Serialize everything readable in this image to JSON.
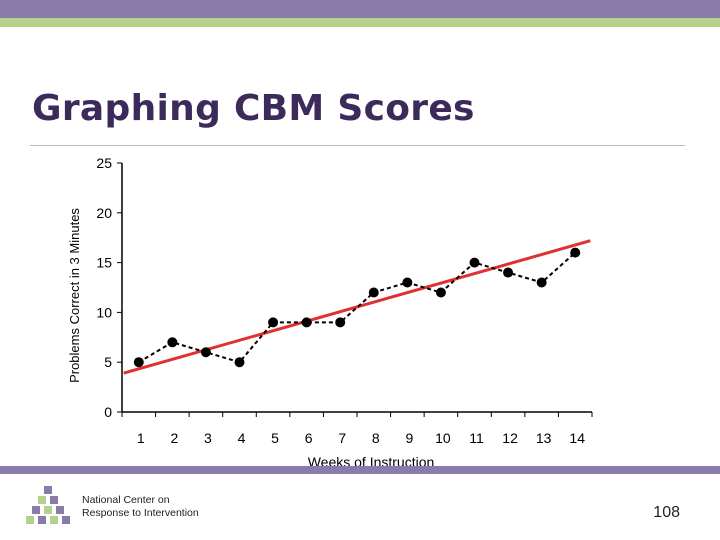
{
  "slide": {
    "title": "Graphing CBM Scores",
    "footer_line1": "National Center on",
    "footer_line2": "Response to Intervention",
    "page_number": "108",
    "colors": {
      "accent_purple": "#8b7bab",
      "accent_green": "#b5d28c",
      "title": "#3b2a5a"
    }
  },
  "chart_data": {
    "type": "line",
    "title": "",
    "xlabel": "Weeks of Instruction",
    "ylabel": "Problems Correct in 3 Minutes",
    "x": [
      1,
      2,
      3,
      4,
      5,
      6,
      7,
      8,
      9,
      10,
      11,
      12,
      13,
      14
    ],
    "xticks": [
      "1",
      "2",
      "3",
      "4",
      "5",
      "6",
      "7",
      "8",
      "9",
      "10",
      "11",
      "12",
      "13",
      "14"
    ],
    "yticks": [
      "0",
      "5",
      "10",
      "15",
      "20",
      "25"
    ],
    "ylim": [
      0,
      25
    ],
    "xlim": [
      0.5,
      14.5
    ],
    "series": [
      {
        "values": [
          5,
          7,
          6,
          5,
          9,
          9,
          9,
          12,
          13,
          12,
          15,
          14,
          13,
          16
        ],
        "color": "#000000",
        "style": "dashed-with-dots"
      }
    ],
    "trendline": {
      "color": "#e03030",
      "y_start": 3.9,
      "y_end": 17.2
    },
    "grid": false
  }
}
